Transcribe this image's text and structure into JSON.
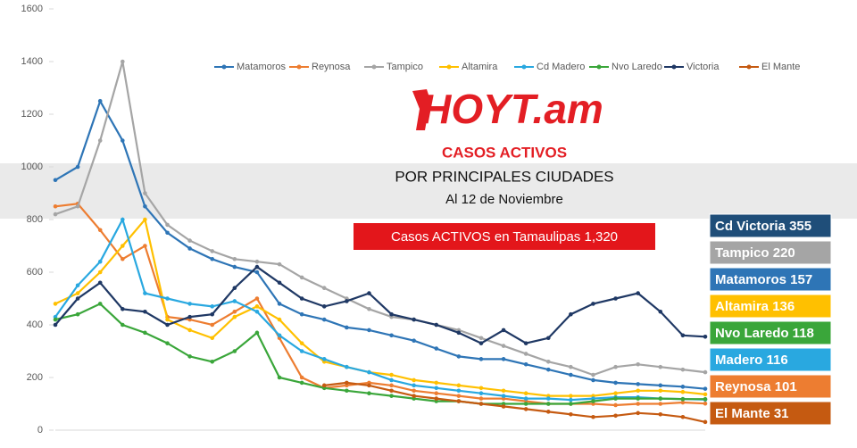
{
  "chart_data": {
    "type": "line",
    "title": "CASOS ACTIVOS",
    "subtitle": "POR PRINCIPALES CIUDADES",
    "date_note": "Al 12 de Noviembre",
    "logo": "HOYT.am",
    "total_box": "Casos ACTIVOS en Tamaulipas  1,320",
    "summary_labels": [
      {
        "label": "Cd Victoria 355",
        "color": "#1f4e79"
      },
      {
        "label": "Tampico 220",
        "color": "#a5a5a5"
      },
      {
        "label": "Matamoros 157",
        "color": "#2e75b6"
      },
      {
        "label": "Altamira 136",
        "color": "#ffc000"
      },
      {
        "label": "Nvo Laredo 118",
        "color": "#3aa63a"
      },
      {
        "label": "Madero 116",
        "color": "#29a8e0"
      },
      {
        "label": "Reynosa 101",
        "color": "#ed7d31"
      },
      {
        "label": "El Mante 31",
        "color": "#c55a11"
      }
    ],
    "categories": [
      null,
      null,
      null,
      null,
      null,
      null,
      null,
      null,
      null,
      null,
      null,
      null,
      null,
      null,
      null,
      null,
      null,
      null,
      null,
      null,
      null,
      null,
      null,
      null,
      null,
      null,
      null,
      null,
      null,
      null
    ],
    "ylim": [
      0,
      1600
    ],
    "yticks": [
      0,
      200,
      400,
      600,
      800,
      1000,
      1200,
      1400,
      1600
    ],
    "series": [
      {
        "name": "Matamoros",
        "color": "#2e75b6",
        "values": [
          950,
          1000,
          1250,
          1100,
          850,
          750,
          690,
          650,
          620,
          600,
          480,
          440,
          420,
          390,
          380,
          360,
          340,
          310,
          280,
          270,
          270,
          250,
          230,
          210,
          190,
          180,
          175,
          170,
          165,
          157
        ]
      },
      {
        "name": "Reynosa",
        "color": "#ed7d31",
        "values": [
          850,
          860,
          760,
          650,
          700,
          430,
          420,
          400,
          450,
          500,
          350,
          200,
          160,
          170,
          180,
          170,
          150,
          140,
          130,
          120,
          120,
          110,
          100,
          100,
          100,
          95,
          100,
          100,
          105,
          101
        ]
      },
      {
        "name": "Tampico",
        "color": "#a5a5a5",
        "values": [
          820,
          850,
          1100,
          1400,
          900,
          780,
          720,
          680,
          650,
          640,
          630,
          580,
          540,
          500,
          460,
          430,
          420,
          400,
          380,
          350,
          320,
          290,
          260,
          240,
          210,
          240,
          250,
          240,
          230,
          220
        ]
      },
      {
        "name": "Altamira",
        "color": "#ffc000",
        "values": [
          480,
          520,
          600,
          700,
          800,
          420,
          380,
          350,
          430,
          470,
          420,
          330,
          260,
          240,
          220,
          210,
          190,
          180,
          170,
          160,
          150,
          140,
          130,
          130,
          130,
          140,
          150,
          150,
          145,
          136
        ]
      },
      {
        "name": "Cd Madero",
        "color": "#29a8e0",
        "values": [
          430,
          550,
          640,
          800,
          520,
          500,
          480,
          470,
          490,
          450,
          360,
          300,
          270,
          240,
          220,
          190,
          170,
          160,
          150,
          140,
          130,
          120,
          120,
          115,
          120,
          125,
          125,
          120,
          118,
          116
        ]
      },
      {
        "name": "Nvo Laredo",
        "color": "#3aa63a",
        "values": [
          420,
          440,
          480,
          400,
          370,
          330,
          280,
          260,
          300,
          370,
          200,
          180,
          160,
          150,
          140,
          130,
          120,
          110,
          110,
          100,
          100,
          100,
          100,
          100,
          110,
          120,
          120,
          120,
          118,
          118
        ]
      },
      {
        "name": "Victoria",
        "color": "#1f3864",
        "values": [
          400,
          500,
          560,
          460,
          450,
          400,
          430,
          440,
          540,
          620,
          560,
          500,
          470,
          490,
          520,
          440,
          420,
          400,
          370,
          330,
          380,
          330,
          350,
          440,
          480,
          500,
          520,
          450,
          360,
          355
        ]
      },
      {
        "name": "El Mante",
        "color": "#c55a11",
        "values": [
          null,
          null,
          null,
          null,
          null,
          null,
          null,
          null,
          null,
          null,
          null,
          null,
          170,
          180,
          170,
          150,
          130,
          120,
          110,
          100,
          90,
          80,
          70,
          60,
          50,
          55,
          65,
          60,
          50,
          31
        ]
      }
    ]
  }
}
